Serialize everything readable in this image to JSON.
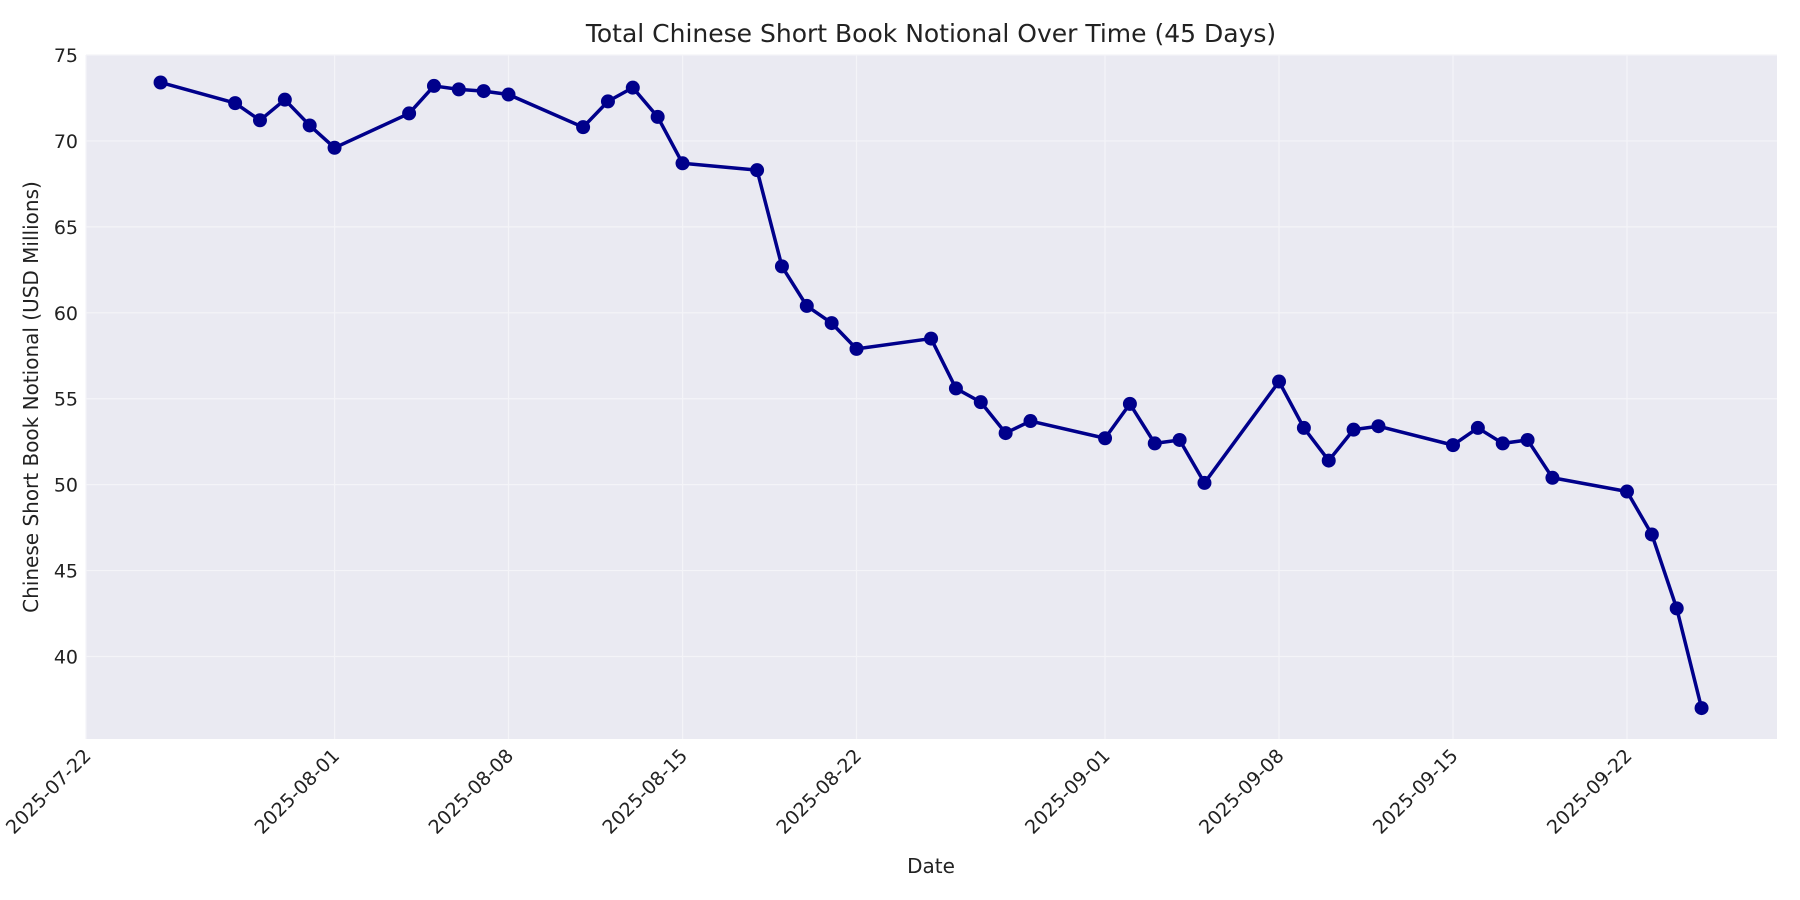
{
  "chart_data": {
    "type": "line",
    "title": "Total Chinese Short Book Notional Over Time (45 Days)",
    "xlabel": "Date",
    "ylabel": "Chinese Short Book Notional (USD Millions)",
    "ylim": [
      35.2,
      75
    ],
    "yticks": [
      40,
      45,
      50,
      55,
      60,
      65,
      70,
      75
    ],
    "xticks": [
      "2025-07-22",
      "2025-08-01",
      "2025-08-08",
      "2025-08-15",
      "2025-08-22",
      "2025-09-01",
      "2025-09-08",
      "2025-09-15",
      "2025-09-22"
    ],
    "grid": true,
    "legend": null,
    "line_color": "#00008b",
    "background": "#eaeaf2",
    "series": [
      {
        "name": "Total Chinese Short Book Notional",
        "x": [
          "2025-07-25",
          "2025-07-28",
          "2025-07-29",
          "2025-07-30",
          "2025-07-31",
          "2025-08-01",
          "2025-08-04",
          "2025-08-05",
          "2025-08-06",
          "2025-08-07",
          "2025-08-08",
          "2025-08-11",
          "2025-08-12",
          "2025-08-13",
          "2025-08-14",
          "2025-08-15",
          "2025-08-18",
          "2025-08-19",
          "2025-08-20",
          "2025-08-21",
          "2025-08-22",
          "2025-08-25",
          "2025-08-26",
          "2025-08-27",
          "2025-08-28",
          "2025-08-29",
          "2025-09-01",
          "2025-09-02",
          "2025-09-03",
          "2025-09-04",
          "2025-09-05",
          "2025-09-08",
          "2025-09-09",
          "2025-09-10",
          "2025-09-11",
          "2025-09-12",
          "2025-09-15",
          "2025-09-16",
          "2025-09-17",
          "2025-09-18",
          "2025-09-19",
          "2025-09-22",
          "2025-09-23",
          "2025-09-24",
          "2025-09-25"
        ],
        "values": [
          73.4,
          72.2,
          71.2,
          72.4,
          70.9,
          69.6,
          71.6,
          73.2,
          73.0,
          72.9,
          72.7,
          70.8,
          72.3,
          73.1,
          71.4,
          68.7,
          68.3,
          62.7,
          60.4,
          59.4,
          57.9,
          58.5,
          55.6,
          54.8,
          53.0,
          53.7,
          52.7,
          54.7,
          52.4,
          52.6,
          50.1,
          56.0,
          53.3,
          51.4,
          53.2,
          53.4,
          52.3,
          53.3,
          52.4,
          52.6,
          50.4,
          49.6,
          47.1,
          42.8,
          37.0
        ]
      }
    ]
  }
}
